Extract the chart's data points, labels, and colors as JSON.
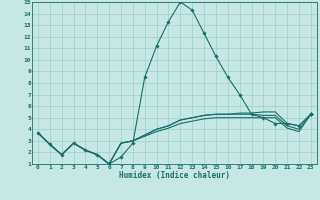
{
  "xlabel": "Humidex (Indice chaleur)",
  "background_color": "#c5e8e4",
  "grid_color": "#9ecfcb",
  "line_color": "#1a6e6a",
  "xlim": [
    -0.5,
    23.5
  ],
  "ylim": [
    1,
    15
  ],
  "xticks": [
    0,
    1,
    2,
    3,
    4,
    5,
    6,
    7,
    8,
    9,
    10,
    11,
    12,
    13,
    14,
    15,
    16,
    17,
    18,
    19,
    20,
    21,
    22,
    23
  ],
  "yticks": [
    1,
    2,
    3,
    4,
    5,
    6,
    7,
    8,
    9,
    10,
    11,
    12,
    13,
    14,
    15
  ],
  "series": [
    [
      3.7,
      2.7,
      1.8,
      2.8,
      2.2,
      1.8,
      1.0,
      1.6,
      2.8,
      8.5,
      11.2,
      13.3,
      15.0,
      14.3,
      12.3,
      10.3,
      8.5,
      7.0,
      5.3,
      5.0,
      4.5,
      4.5,
      4.3,
      5.3
    ],
    [
      3.7,
      2.7,
      1.8,
      2.8,
      2.2,
      1.8,
      1.0,
      2.8,
      3.0,
      3.5,
      4.0,
      4.3,
      4.8,
      5.0,
      5.2,
      5.3,
      5.3,
      5.4,
      5.4,
      5.5,
      5.5,
      4.5,
      4.3,
      5.3
    ],
    [
      3.7,
      2.7,
      1.8,
      2.8,
      2.2,
      1.8,
      1.0,
      2.8,
      3.0,
      3.5,
      4.0,
      4.3,
      4.8,
      5.0,
      5.2,
      5.3,
      5.3,
      5.3,
      5.3,
      5.2,
      5.2,
      4.3,
      4.0,
      5.3
    ],
    [
      3.7,
      2.7,
      1.8,
      2.8,
      2.2,
      1.8,
      1.0,
      2.8,
      3.0,
      3.4,
      3.8,
      4.1,
      4.5,
      4.7,
      4.9,
      5.0,
      5.0,
      5.0,
      5.0,
      5.0,
      5.0,
      4.1,
      3.8,
      5.3
    ]
  ]
}
